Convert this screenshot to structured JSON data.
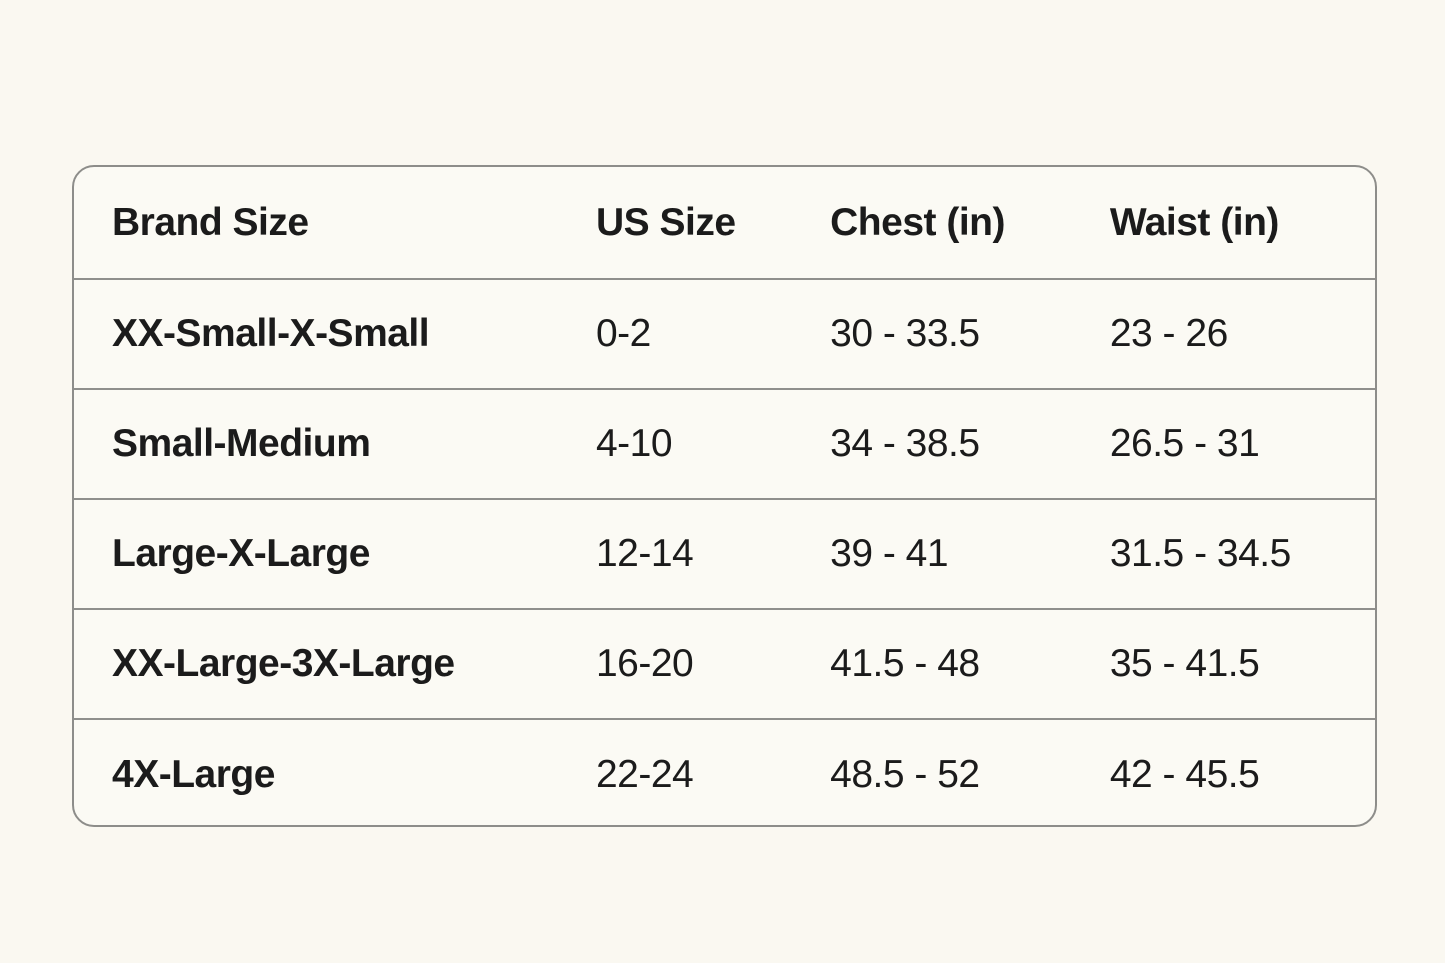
{
  "colors": {
    "page_background": "#faf8f1",
    "card_background": "#fbfaf4",
    "border": "#8d8d8a",
    "text": "#1b1b1b"
  },
  "chart_data": {
    "type": "table",
    "title": "",
    "columns": [
      "Brand Size",
      "US Size",
      "Chest (in)",
      "Waist (in)"
    ],
    "rows": [
      [
        "XX-Small-X-Small",
        "0-2",
        "30 - 33.5",
        "23 - 26"
      ],
      [
        "Small-Medium",
        "4-10",
        "34 - 38.5",
        "26.5 - 31"
      ],
      [
        "Large-X-Large",
        "12-14",
        "39 - 41",
        "31.5 - 34.5"
      ],
      [
        "XX-Large-3X-Large",
        "16-20",
        "41.5 - 48",
        "35 - 41.5"
      ],
      [
        "4X-Large",
        "22-24",
        "48.5 - 52",
        "42 - 45.5"
      ]
    ]
  }
}
